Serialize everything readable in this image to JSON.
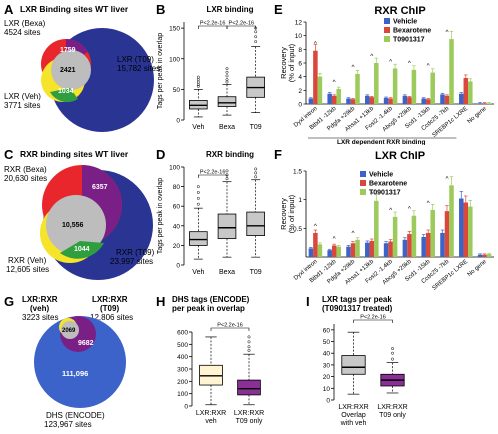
{
  "panels": {
    "A": {
      "letter": "A",
      "title": "LXR Binding sites WT liver",
      "sets": [
        {
          "name": "LXR (Bexa)",
          "sites": "4524 sites",
          "color": "#e8262b"
        },
        {
          "name": "LXR (Veh)",
          "sites": "3771 sites",
          "color": "#f5e42a"
        },
        {
          "name": "LXR (T09)",
          "sites": "15,782 sites",
          "color": "#2a3593"
        }
      ],
      "counts": {
        "bexa_t09": "1759",
        "all": "2421",
        "veh_t09": "1034"
      }
    },
    "B": {
      "letter": "B",
      "chart_data": {
        "type": "boxplot",
        "title": "LXR binding",
        "ylabel": "Tags per peak in overlap",
        "categories": [
          "Veh",
          "Bexa",
          "T09"
        ],
        "ylim": [
          0,
          160
        ],
        "yticks": [
          0,
          50,
          100,
          150
        ],
        "annotations": [
          "P<2.2e-16",
          "P<2.2e-16"
        ],
        "boxes": [
          {
            "whisker_low": 5,
            "q1": 18,
            "median": 24,
            "q3": 32,
            "whisker_high": 50,
            "outliers": [
              55,
              58,
              62,
              66,
              70
            ]
          },
          {
            "whisker_low": 8,
            "q1": 22,
            "median": 28,
            "q3": 38,
            "whisker_high": 58,
            "outliers": [
              62,
              66,
              72,
              78,
              84
            ]
          },
          {
            "whisker_low": 12,
            "q1": 37,
            "median": 53,
            "q3": 70,
            "whisker_high": 120,
            "outliers": [
              128,
              136,
              144,
              150
            ]
          }
        ]
      }
    },
    "C": {
      "letter": "C",
      "title": "RXR binding sites WT liver",
      "sets": [
        {
          "name": "RXR (Bexa)",
          "sites": "20,630 sites",
          "color": "#e8262b"
        },
        {
          "name": "RXR (Veh)",
          "sites": "12,605 sites",
          "color": "#f5e42a"
        },
        {
          "name": "RXR (T09)",
          "sites": "23,997 sites",
          "color": "#2a3593"
        }
      ],
      "counts": {
        "bexa_t09": "6357",
        "all": "10,556",
        "veh_t09": "1044"
      }
    },
    "D": {
      "letter": "D",
      "chart_data": {
        "type": "boxplot",
        "title": "RXR binding",
        "ylabel": "Tags per peak in overlap",
        "categories": [
          "Veh",
          "Bexa",
          "T09"
        ],
        "ylim": [
          0,
          100
        ],
        "yticks": [
          0,
          20,
          40,
          60,
          80,
          100
        ],
        "annotations": [
          "P<2.2e-16"
        ],
        "boxes": [
          {
            "whisker_low": 6,
            "q1": 20,
            "median": 26,
            "q3": 34,
            "whisker_high": 58,
            "outliers": [
              62,
              68,
              74,
              80
            ]
          },
          {
            "whisker_low": 8,
            "q1": 27,
            "median": 38,
            "q3": 52,
            "whisker_high": 85,
            "outliers": [
              88,
              92,
              96
            ]
          },
          {
            "whisker_low": 8,
            "q1": 30,
            "median": 40,
            "q3": 54,
            "whisker_high": 87,
            "outliers": [
              90,
              94,
              98
            ]
          }
        ]
      }
    },
    "E": {
      "letter": "E",
      "chart_data": {
        "type": "bar",
        "title": "RXR ChIP",
        "ylabel": "Recovery (% of input)",
        "ylim": [
          0,
          12
        ],
        "yticks": [
          0,
          2,
          4,
          6,
          8,
          10,
          12
        ],
        "categories": [
          "Dyxl intron",
          "Btbd1 -12kb",
          "Pdgfa +29kb",
          "Ahsa1 +13kb",
          "Fosl2 -1.4kb",
          "Abcg5 +29kb",
          "Scd1 -13kb",
          "Ccdc25 -7kb",
          "SREBP1c LXRE",
          "No gene"
        ],
        "group_label": "LXR dependent RXR binding",
        "legend": [
          "Vehicle",
          "Bexarotene",
          "T0901317"
        ],
        "colors": [
          "#3e63c6",
          "#d9483b",
          "#9ccb5b"
        ],
        "series": [
          {
            "name": "Vehicle",
            "values": [
              0.8,
              1.5,
              0.8,
              1.2,
              0.9,
              1.2,
              0.8,
              1.4,
              1.5,
              0.1
            ]
          },
          {
            "name": "Bexarotene",
            "values": [
              7.8,
              1.2,
              0.7,
              1.0,
              0.8,
              1.0,
              0.7,
              1.2,
              3.8,
              0.1
            ]
          },
          {
            "name": "T0901317",
            "values": [
              4.0,
              2.2,
              4.4,
              6.0,
              5.2,
              5.0,
              4.6,
              9.5,
              3.3,
              0.1
            ]
          }
        ],
        "markers": "^"
      }
    },
    "F": {
      "letter": "F",
      "chart_data": {
        "type": "bar",
        "title": "LXR ChIP",
        "ylabel": "Recovery (% of input)",
        "ylim": [
          0,
          1.5
        ],
        "yticks": [
          0.5,
          1.0,
          1.5
        ],
        "categories": [
          "Dyxl intron",
          "Btbd1 -12kb",
          "Pdgfa +29kb",
          "Ahsa1 +13kb",
          "Fosl2 -1.4kb",
          "Abcg5 +29kb",
          "Scd1 -15kb",
          "Ccdc25 -7kb",
          "SREBP1c LXRE",
          "No gene"
        ],
        "legend": [
          "Vehicle",
          "Bexarotene",
          "T0901317"
        ],
        "colors": [
          "#3e63c6",
          "#d9483b",
          "#9ccb5b"
        ],
        "series": [
          {
            "name": "Vehicle",
            "values": [
              0.15,
              0.12,
              0.18,
              0.25,
              0.24,
              0.3,
              0.35,
              0.42,
              1.02,
              0.04
            ]
          },
          {
            "name": "Bexarotene",
            "values": [
              0.42,
              0.2,
              0.24,
              0.28,
              0.27,
              0.4,
              0.42,
              0.8,
              0.95,
              0.04
            ]
          },
          {
            "name": "T0901317",
            "values": [
              0.22,
              0.18,
              0.3,
              0.98,
              0.7,
              0.72,
              0.82,
              1.25,
              0.88,
              0.05
            ]
          }
        ],
        "markers": "^"
      }
    },
    "G": {
      "letter": "G",
      "sets": [
        {
          "name": "LXR:RXR",
          "sub": "(veh)",
          "sites": "3223 sites",
          "color": "#f5e42a"
        },
        {
          "name": "LXR:RXR",
          "sub": "(T09)",
          "sites": "12,806 sites",
          "color": "#7a1f86"
        },
        {
          "name": "DHS (ENCODE)",
          "sites": "123,967 sites",
          "color": "#3b63c9"
        }
      ],
      "counts": {
        "veh_small": "2069",
        "t09": "9682",
        "dhs": "111,096"
      }
    },
    "H": {
      "letter": "H",
      "chart_data": {
        "type": "boxplot",
        "title": "DHS tags (ENCODE) per peak in overlap",
        "categories": [
          "LXR:RXR veh",
          "LXR:RXR T09 only"
        ],
        "ylim": [
          0,
          600
        ],
        "yticks": [
          0,
          100,
          200,
          300,
          400,
          500,
          600
        ],
        "annotations": [
          "P<2.2e-16"
        ],
        "colors": [
          "#fff5d2",
          "#8a2f96"
        ],
        "boxes": [
          {
            "whisker_low": 10,
            "q1": 170,
            "median": 245,
            "q3": 330,
            "whisker_high": 560,
            "outliers": []
          },
          {
            "whisker_low": 10,
            "q1": 90,
            "median": 140,
            "q3": 210,
            "whisker_high": 420,
            "outliers": [
              450,
              480,
              520,
              560
            ]
          }
        ]
      }
    },
    "I": {
      "letter": "I",
      "chart_data": {
        "type": "boxplot",
        "title": "LXR tags per peak (T0901317 treated)",
        "categories": [
          "LXR:RXR Overlap with veh",
          "LXR:RXR T09 only"
        ],
        "ylim": [
          0,
          65
        ],
        "yticks": [
          0,
          10,
          20,
          30,
          40,
          50,
          60
        ],
        "annotations": [
          "P<2.2e-16"
        ],
        "colors": [
          "#c8c8c8",
          "#8a2f96"
        ],
        "boxes": [
          {
            "whisker_low": 5,
            "q1": 22,
            "median": 28,
            "q3": 38,
            "whisker_high": 58,
            "outliers": []
          },
          {
            "whisker_low": 6,
            "q1": 12,
            "median": 17,
            "q3": 22,
            "whisker_high": 32,
            "outliers": [
              35,
              40,
              44
            ]
          }
        ]
      }
    }
  }
}
